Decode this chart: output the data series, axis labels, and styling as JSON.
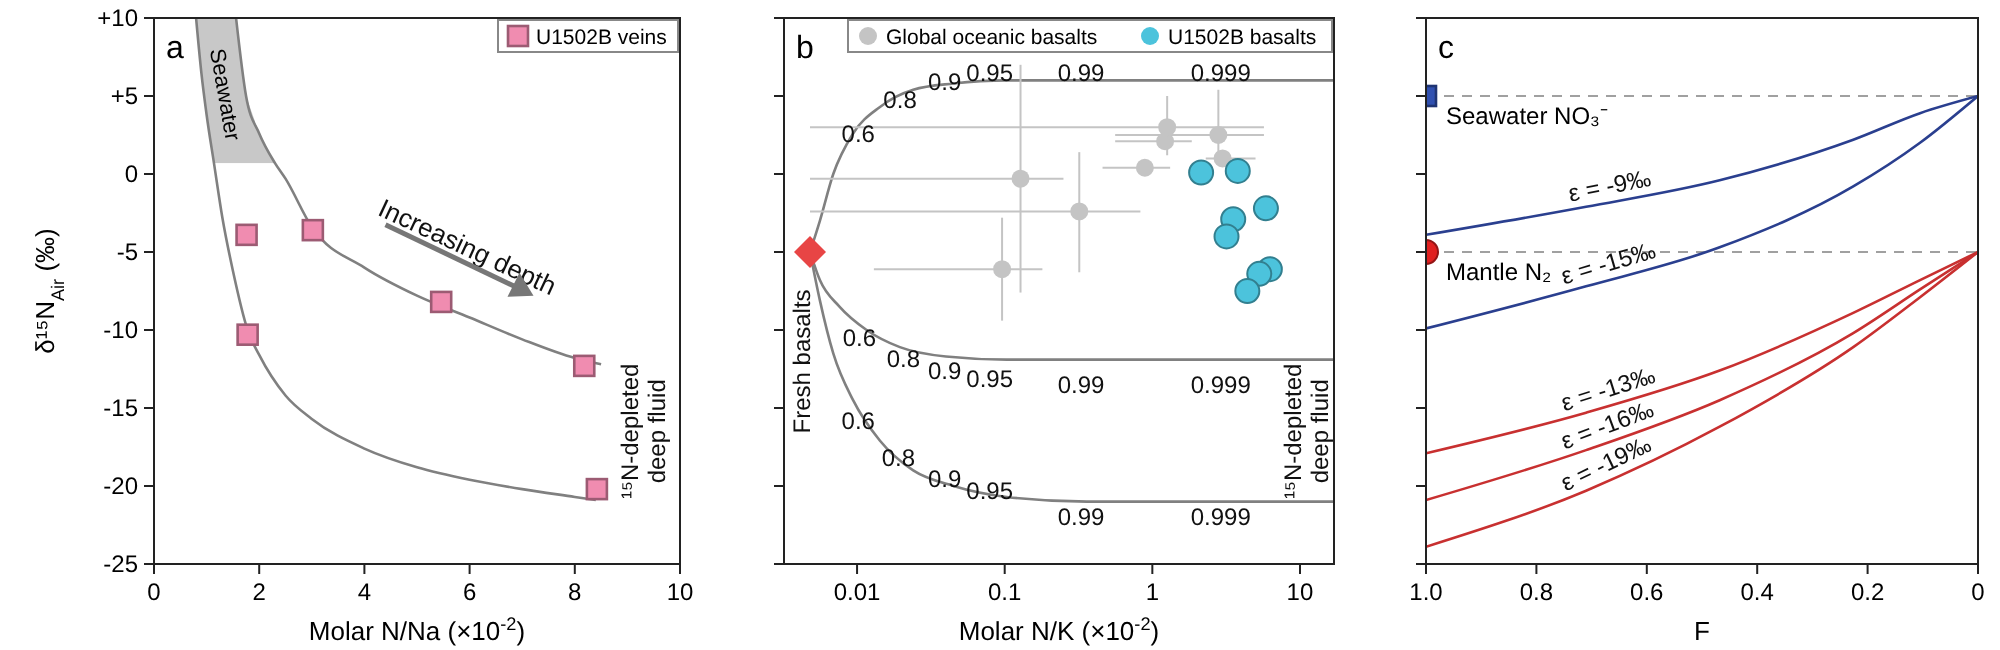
{
  "chart_data": [
    {
      "type": "scatter",
      "title": "a",
      "xlabel": "Molar N/Na (×10$^{-2}$)",
      "ylabel": "δ¹⁵N$_{Air}$  (‰)",
      "xlim": [
        0,
        10
      ],
      "xticks": [
        0,
        2,
        4,
        6,
        8,
        10
      ],
      "ylim": [
        -25,
        10
      ],
      "yticks": [
        {
          "value": 10,
          "label": "+10"
        },
        {
          "value": 5,
          "label": "+5"
        },
        0,
        -5,
        -10,
        -15,
        -20,
        -25
      ],
      "legend": "top right",
      "bands": [
        {
          "axis": "y",
          "from": 0.7,
          "to": 10,
          "label": "Seawater",
          "color": "#c8c8c8"
        }
      ],
      "annotations": [
        "Increasing depth",
        "¹⁵N-depleted deep fluid"
      ],
      "series": [
        {
          "type": "line",
          "color": "#808080",
          "x": [
            1.56,
            1.75,
            2,
            2.3,
            2.5,
            3,
            4,
            5,
            6,
            7,
            8,
            8.5
          ],
          "values": [
            10,
            5,
            2.6,
            0.7,
            -0.3,
            -3.4,
            -6.0,
            -7.8,
            -9.2,
            -10.6,
            -11.8,
            -12.2
          ]
        },
        {
          "type": "line",
          "color": "#808080",
          "x": [
            0.8,
            0.9,
            1.0,
            1.14,
            1.3,
            1.5,
            1.78,
            2,
            2.5,
            3,
            4,
            5,
            6,
            7,
            8,
            8.4
          ],
          "values": [
            10,
            6.5,
            3.8,
            0.7,
            -2.8,
            -6.2,
            -10.0,
            -11.6,
            -14.2,
            -15.7,
            -17.6,
            -18.8,
            -19.6,
            -20.2,
            -20.7,
            -20.9
          ]
        },
        {
          "name": "U1502B veins",
          "color": "#f08cb0",
          "marker": "square",
          "x": [
            1.76,
            1.78,
            3.02,
            5.46,
            8.18,
            8.42
          ],
          "values": [
            -3.9,
            -10.3,
            -3.6,
            -8.2,
            -12.3,
            -20.2
          ]
        }
      ]
    },
    {
      "type": "scatter",
      "title": "b",
      "xlabel": "Molar N/K (×10$^{-2}$)",
      "log": "x",
      "xlim": [
        0.0032,
        17
      ],
      "xticks": [
        0.01,
        0.1,
        1,
        10
      ],
      "ylim": [
        -25,
        10
      ],
      "yticks": [
        10,
        5,
        0,
        -5,
        -10,
        -15,
        -20,
        -25
      ],
      "tick_labels": "x",
      "legend": "top right",
      "annotations": [
        "0.6",
        "0.8",
        "0.9",
        "0.95",
        "0.99",
        "0.999",
        "0.6",
        "0.8",
        "0.9",
        "0.95",
        "0.99",
        "0.999",
        "0.6",
        "0.8",
        "0.9",
        "0.95",
        "0.99",
        "0.999",
        "Fresh basalts",
        "¹⁵N-depleted deep fluid"
      ],
      "series": [
        {
          "type": "line",
          "color": "#808080",
          "x": [
            0.0048,
            0.0056,
            0.0069,
            0.0094,
            0.0143,
            0.024,
            0.045,
            0.103,
            17
          ],
          "values": [
            -5,
            -3.0,
            0.0,
            2.6,
            4.3,
            5.4,
            5.8,
            6.0,
            6.0
          ]
        },
        {
          "type": "line",
          "color": "#808080",
          "x": [
            0.0048,
            0.0056,
            0.0076,
            0.0116,
            0.0195,
            0.04,
            0.103,
            17
          ],
          "values": [
            -5,
            -6.8,
            -8.5,
            -10.0,
            -11.1,
            -11.7,
            -11.9,
            -11.9
          ]
        },
        {
          "type": "line",
          "color": "#808080",
          "x": [
            0.0048,
            0.0056,
            0.0069,
            0.0094,
            0.0143,
            0.024,
            0.045,
            0.103,
            0.36,
            17
          ],
          "values": [
            -5,
            -8.1,
            -11.5,
            -14.5,
            -17.1,
            -19.0,
            -20.0,
            -20.7,
            -21.0,
            -21.0
          ]
        },
        {
          "name": "Global oceanic basalts",
          "color": "#c4c4c4",
          "marker": "circle",
          "x": [
            0.128,
            0.096,
            0.32,
            0.89,
            1.22,
            1.26,
            2.8,
            2.99
          ],
          "values": [
            -0.3,
            -6.1,
            -2.4,
            0.4,
            2.1,
            3.0,
            2.5,
            1.0
          ],
          "xerrors": [
            [
              0.0048,
              0.25
            ],
            [
              0.013,
              0.18
            ],
            [
              0.0048,
              0.83
            ],
            [
              0.46,
              1.32
            ],
            [
              0.56,
              1.85
            ],
            [
              0.0048,
              5.7
            ],
            [
              0.56,
              5.7
            ],
            [
              2.3,
              5.0
            ]
          ],
          "errors": [
            [
              -7.6,
              7.0
            ],
            [
              -9.4,
              -2.8
            ],
            [
              -6.3,
              1.4
            ],
            null,
            null,
            [
              1.2,
              5.0
            ],
            [
              0.9,
              5.4
            ],
            null
          ]
        },
        {
          "name": "U1502B basalts",
          "color": "#4cc3dc",
          "marker": "circle",
          "x": [
            2.14,
            3.79,
            5.88,
            3.53,
            3.18,
            6.25,
            5.3,
            4.4
          ],
          "values": [
            0.1,
            0.2,
            -2.2,
            -2.9,
            -4.0,
            -6.1,
            -6.4,
            -7.5
          ]
        },
        {
          "color": "#e84545",
          "marker": "diamond",
          "x": [
            0.0048
          ],
          "values": [
            -5
          ]
        }
      ]
    },
    {
      "type": "line",
      "title": "c",
      "xlabel": "F",
      "xlim": [
        1,
        0
      ],
      "xticks": [
        {
          "value": 1,
          "label": "1.0"
        },
        0.8,
        0.6,
        0.4,
        0.2,
        0
      ],
      "ylim": [
        -25,
        10
      ],
      "yticks": [
        10,
        5,
        0,
        -5,
        -10,
        -15,
        -20,
        -25
      ],
      "tick_labels": "x",
      "ref_lines": [
        {
          "axis": "y",
          "value": 5,
          "label": "Seawater NO₃⁻",
          "color": "#a0a0a0",
          "line_style": "dashed"
        },
        {
          "axis": "y",
          "value": -5,
          "label": "Mantle N₂",
          "color": "#a0a0a0",
          "line_style": "dashed"
        }
      ],
      "series": [
        {
          "name": "ε = -9‰",
          "color": "#2a3f8f",
          "x": [
            1,
            0.71,
            0.468,
            0.226,
            0.105,
            0
          ],
          "values": [
            -3.9,
            -2.1,
            -0.4,
            2.2,
            3.9,
            5.0
          ]
        },
        {
          "name": "ε = -15‰",
          "color": "#2a3f8f",
          "x": [
            1,
            0.71,
            0.468,
            0.226,
            0.105,
            0
          ],
          "values": [
            -9.9,
            -7.2,
            -4.7,
            -0.8,
            2.0,
            5.0
          ]
        },
        {
          "name": "ε = -13‰",
          "color": "#c83030",
          "x": [
            1,
            0.71,
            0.468,
            0.226,
            0.105,
            0
          ],
          "values": [
            -17.9,
            -15.3,
            -12.6,
            -8.9,
            -6.8,
            -5.0
          ]
        },
        {
          "name": "ε = -16‰",
          "color": "#c83030",
          "x": [
            1,
            0.71,
            0.468,
            0.226,
            0.105,
            0
          ],
          "values": [
            -20.9,
            -17.7,
            -14.5,
            -10.2,
            -7.4,
            -5.0
          ]
        },
        {
          "name": "ε = -19‰",
          "color": "#c83030",
          "x": [
            1,
            0.71,
            0.468,
            0.226,
            0.105,
            0
          ],
          "values": [
            -23.9,
            -20.3,
            -16.2,
            -11.1,
            -7.9,
            -5.0
          ]
        },
        {
          "type": "scatter",
          "color": "#3050b0",
          "marker": "square",
          "x": [
            1
          ],
          "values": [
            5
          ]
        },
        {
          "type": "scatter",
          "color": "#e02020",
          "marker": "circle",
          "x": [
            1
          ],
          "values": [
            -5
          ]
        }
      ]
    }
  ]
}
